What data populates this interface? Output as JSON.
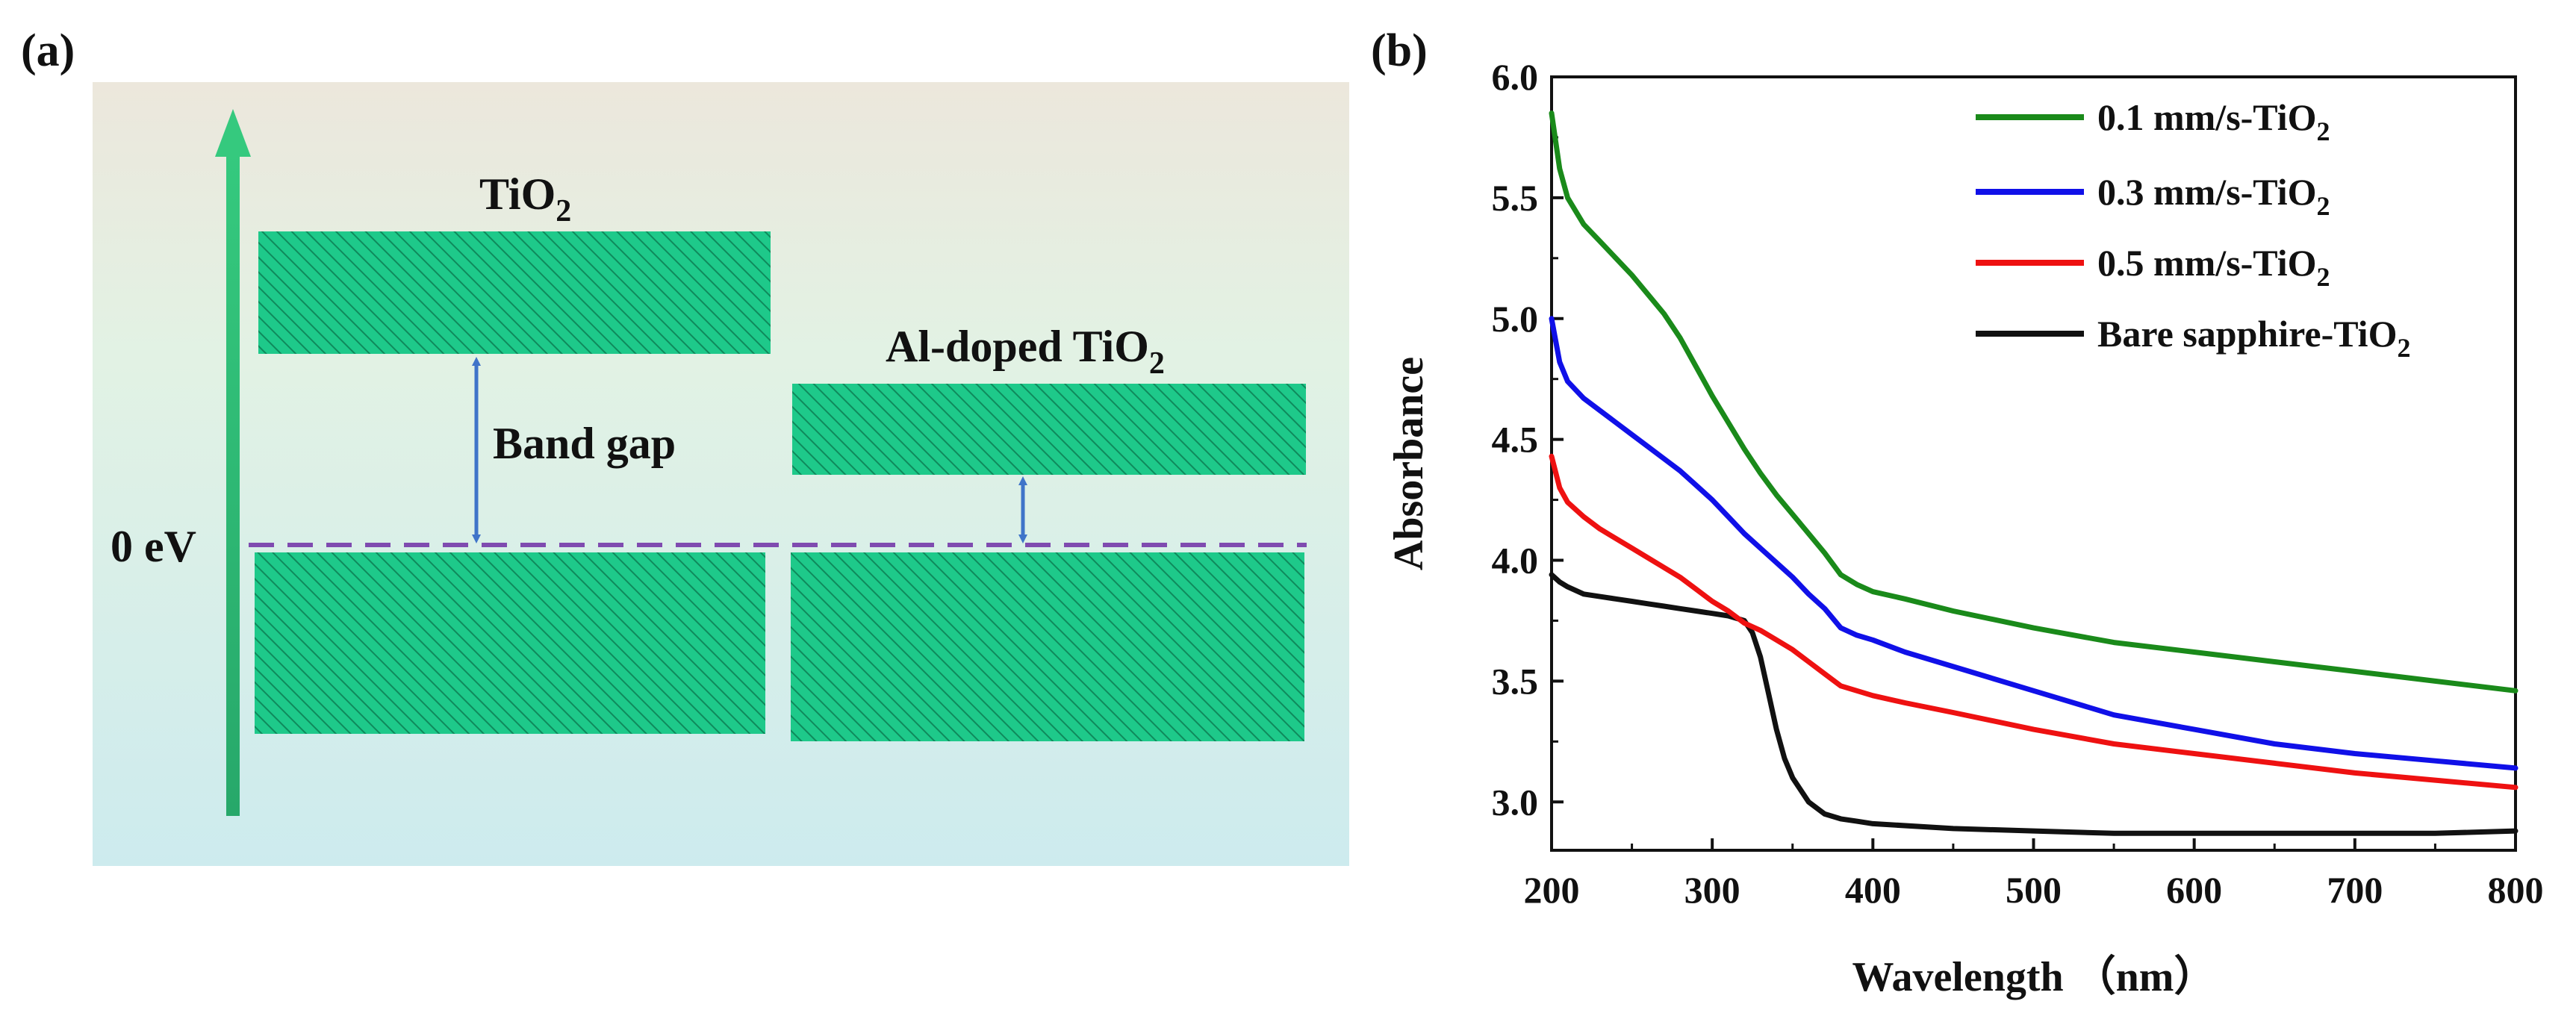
{
  "panel_a": {
    "label": "(a)",
    "bands": {
      "tio2": {
        "label_main": "TiO",
        "label_sub": "2"
      },
      "al_doped": {
        "label_main": "Al-doped TiO",
        "label_sub": "2"
      }
    },
    "band_gap_label": "Band gap",
    "zero_label": "0 eV",
    "colors": {
      "band_fill": "#1ec98a",
      "arrow": "#2eb872",
      "gap_arrow": "#3f74c9",
      "fermi_line": "#7f4bb0",
      "bg_top": "#ece7dc",
      "bg_mid": "#e0f2e5",
      "bg_bottom": "#cdebee"
    }
  },
  "panel_b": {
    "label": "(b)"
  },
  "chart_data": {
    "type": "line",
    "title": "",
    "xlabel": "Wavelength （nm）",
    "ylabel": "Absorbance",
    "xlim": [
      200,
      800
    ],
    "ylim": [
      2.8,
      6.0
    ],
    "xticks": [
      "200",
      "300",
      "400",
      "500",
      "600",
      "700",
      "800"
    ],
    "yticks": [
      "3.0",
      "3.5",
      "4.0",
      "4.5",
      "5.0",
      "5.5",
      "6.0"
    ],
    "grid": false,
    "legend_position": "top-right",
    "series": [
      {
        "name_main": "0.1 mm/s-TiO",
        "name_sub": "2",
        "color": "#1a8a1a",
        "x": [
          200,
          205,
          210,
          220,
          230,
          240,
          250,
          260,
          270,
          280,
          290,
          300,
          310,
          320,
          330,
          340,
          350,
          360,
          370,
          380,
          390,
          400,
          420,
          450,
          500,
          550,
          600,
          650,
          700,
          750,
          800
        ],
        "y": [
          5.85,
          5.62,
          5.5,
          5.39,
          5.32,
          5.25,
          5.18,
          5.1,
          5.02,
          4.92,
          4.8,
          4.68,
          4.57,
          4.46,
          4.36,
          4.27,
          4.19,
          4.11,
          4.03,
          3.94,
          3.9,
          3.87,
          3.84,
          3.79,
          3.72,
          3.66,
          3.62,
          3.58,
          3.54,
          3.5,
          3.46
        ]
      },
      {
        "name_main": "0.3 mm/s-TiO",
        "name_sub": "2",
        "color": "#1010e8",
        "x": [
          200,
          205,
          210,
          220,
          230,
          240,
          250,
          260,
          270,
          280,
          290,
          300,
          310,
          320,
          330,
          340,
          350,
          360,
          370,
          380,
          390,
          400,
          420,
          450,
          500,
          550,
          600,
          650,
          700,
          750,
          800
        ],
        "y": [
          5.0,
          4.82,
          4.74,
          4.67,
          4.62,
          4.57,
          4.52,
          4.47,
          4.42,
          4.37,
          4.31,
          4.25,
          4.18,
          4.11,
          4.05,
          3.99,
          3.93,
          3.86,
          3.8,
          3.72,
          3.69,
          3.67,
          3.62,
          3.56,
          3.46,
          3.36,
          3.3,
          3.24,
          3.2,
          3.17,
          3.14
        ]
      },
      {
        "name_main": "0.5 mm/s-TiO",
        "name_sub": "2",
        "color": "#ee1111",
        "x": [
          200,
          205,
          210,
          220,
          230,
          240,
          250,
          260,
          270,
          280,
          290,
          300,
          310,
          320,
          330,
          340,
          350,
          360,
          370,
          380,
          390,
          400,
          420,
          450,
          500,
          550,
          600,
          650,
          700,
          750,
          800
        ],
        "y": [
          4.43,
          4.3,
          4.24,
          4.18,
          4.13,
          4.09,
          4.05,
          4.01,
          3.97,
          3.93,
          3.88,
          3.83,
          3.79,
          3.74,
          3.71,
          3.67,
          3.63,
          3.58,
          3.53,
          3.48,
          3.46,
          3.44,
          3.41,
          3.37,
          3.3,
          3.24,
          3.2,
          3.16,
          3.12,
          3.09,
          3.06
        ]
      },
      {
        "name_main": "Bare sapphire-TiO",
        "name_sub": "2",
        "color": "#111111",
        "x": [
          200,
          205,
          210,
          220,
          230,
          240,
          250,
          260,
          270,
          280,
          290,
          300,
          310,
          320,
          325,
          330,
          335,
          340,
          345,
          350,
          360,
          370,
          380,
          390,
          400,
          450,
          500,
          550,
          600,
          650,
          700,
          750,
          800
        ],
        "y": [
          3.94,
          3.91,
          3.89,
          3.86,
          3.85,
          3.84,
          3.83,
          3.82,
          3.81,
          3.8,
          3.79,
          3.78,
          3.77,
          3.75,
          3.7,
          3.6,
          3.45,
          3.3,
          3.18,
          3.1,
          3.0,
          2.95,
          2.93,
          2.92,
          2.91,
          2.89,
          2.88,
          2.87,
          2.87,
          2.87,
          2.87,
          2.87,
          2.88
        ]
      }
    ]
  }
}
